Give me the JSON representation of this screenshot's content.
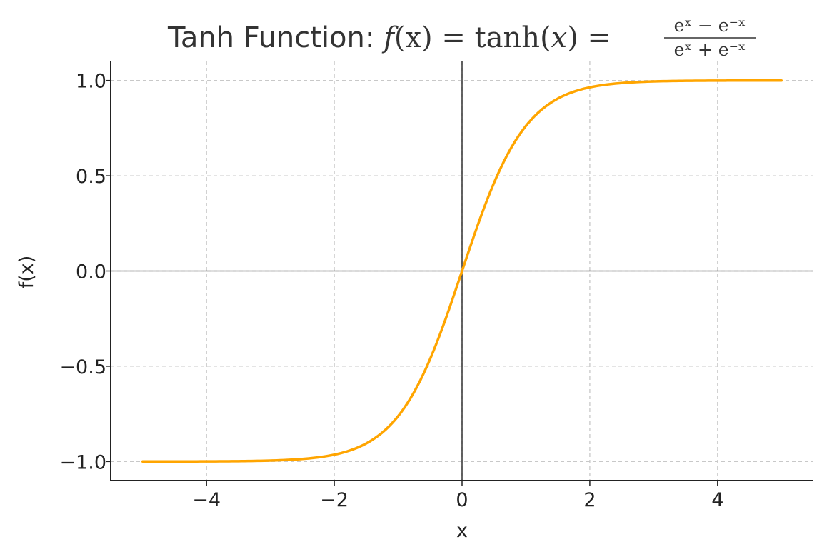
{
  "chart_data": {
    "type": "line",
    "title": {
      "prefix": "Tanh Function: ",
      "lhs_f": "f",
      "lhs_x": "(x)",
      "eq1": " = tanh(",
      "eq1_x": "x",
      "eq1_close": ") =",
      "numerator": "eˣ − e⁻ˣ",
      "denominator": "eˣ + e⁻ˣ"
    },
    "xlabel": "x",
    "ylabel": "f(x)",
    "xlim": [
      -5.5,
      5.5
    ],
    "ylim": [
      -1.1,
      1.1
    ],
    "x_ticks": [
      -4,
      -2,
      0,
      2,
      4
    ],
    "x_tick_labels": [
      "−4",
      "−2",
      "0",
      "2",
      "4"
    ],
    "y_ticks": [
      -1.0,
      -0.5,
      0.0,
      0.5,
      1.0
    ],
    "y_tick_labels": [
      "−1.0",
      "−0.5",
      "0.0",
      "0.5",
      "1.0"
    ],
    "grid": true,
    "reference_lines": {
      "x": 0,
      "y": 0
    },
    "series": [
      {
        "name": "tanh(x)",
        "color": "#FFA500",
        "x_range": [
          -5,
          5
        ],
        "samples": 201,
        "function": "tanh"
      }
    ]
  }
}
